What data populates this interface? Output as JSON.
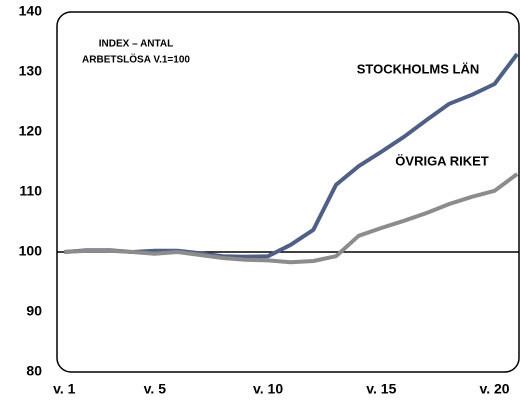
{
  "chart_data": {
    "type": "line",
    "annotations": [
      "INDEX – ANTAL",
      "ARBETSLÖSA V.1=100"
    ],
    "x": [
      1,
      2,
      3,
      4,
      5,
      6,
      7,
      8,
      9,
      10,
      11,
      12,
      13,
      14,
      15,
      16,
      17,
      18,
      19,
      20,
      21
    ],
    "series": [
      {
        "name": "STOCKHOLMS LÄN",
        "color": "#4f5f86",
        "values": [
          100,
          100.3,
          100.3,
          100,
          100.2,
          100.2,
          99.8,
          99.3,
          99.2,
          99.3,
          101.2,
          103.7,
          111.2,
          114.3,
          116.7,
          119.2,
          122,
          124.7,
          126.2,
          128,
          133
        ]
      },
      {
        "name": "ÖVRIGA RIKET",
        "color": "#8c8c8c",
        "values": [
          100,
          100.2,
          100.2,
          100,
          99.7,
          100,
          99.5,
          99,
          98.7,
          98.6,
          98.3,
          98.5,
          99.3,
          102.7,
          104,
          105.2,
          106.5,
          108,
          109.2,
          110.2,
          113
        ]
      }
    ],
    "reference_line": 100,
    "xlim": [
      0.68,
      21.08
    ],
    "xticks": [
      {
        "value": 1,
        "label": "v. 1"
      },
      {
        "value": 5,
        "label": "v. 5"
      },
      {
        "value": 10,
        "label": "v. 10"
      },
      {
        "value": 15,
        "label": "v. 15"
      },
      {
        "value": 20,
        "label": "v. 20"
      }
    ],
    "ylim": [
      80,
      140
    ],
    "yticks": [
      80,
      90,
      100,
      110,
      120,
      130,
      140
    ]
  }
}
